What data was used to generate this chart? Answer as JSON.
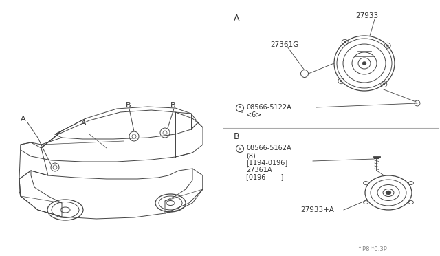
{
  "bg_color": "#ffffff",
  "line_color": "#444444",
  "text_color": "#333333",
  "section_A_label": "A",
  "section_B_label": "B",
  "part_A_speaker": "27933",
  "part_A_screw": "27361G",
  "part_A_bolt": "08566-5122A",
  "part_A_bolt_sub": "<6>",
  "part_B_bolt": "08566-5162A",
  "part_B_bolt_sub1": "(8)",
  "part_B_bolt_sub2": "[1194-0196]",
  "part_B_speaker": "27361A",
  "part_B_speaker_sub": "[0196-      ]",
  "part_B_part": "27933+A",
  "car_label_A": "A",
  "car_label_B1": "B",
  "car_label_B2": "B",
  "footnote": "^P8 *0:3P"
}
